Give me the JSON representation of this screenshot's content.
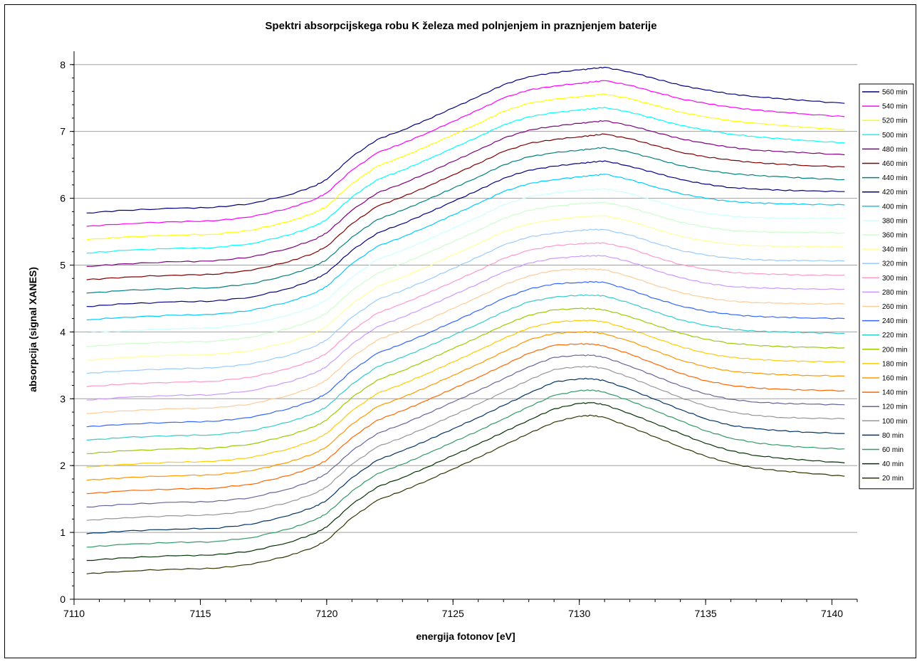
{
  "chart_data": {
    "type": "line",
    "title": "Spektri absorpcijskega robu K železa med polnjenjem in praznjenjem baterije",
    "xlabel": "energija fotonov [eV]",
    "ylabel": "absorpcija (signal XANES)",
    "xlim": [
      7110,
      7141
    ],
    "ylim": [
      0,
      8.2
    ],
    "x_ticks": [
      7110,
      7115,
      7120,
      7125,
      7130,
      7135,
      7140
    ],
    "y_ticks": [
      0,
      1,
      2,
      3,
      4,
      5,
      6,
      7,
      8
    ],
    "grid": "horizontal",
    "legend_position": "right",
    "x": [
      7110.5,
      7112,
      7114,
      7115.5,
      7117,
      7118.5,
      7119.5,
      7120,
      7121,
      7122,
      7123,
      7124,
      7125,
      7126,
      7127,
      7128,
      7129,
      7130,
      7130.5,
      7131,
      7132,
      7133,
      7134,
      7135,
      7136,
      7137,
      7138,
      7139,
      7140.5
    ],
    "series": [
      {
        "name": "20 min",
        "color": "#333300",
        "values": [
          0.38,
          0.42,
          0.45,
          0.46,
          0.52,
          0.65,
          0.78,
          0.88,
          1.22,
          1.48,
          1.62,
          1.78,
          1.95,
          2.12,
          2.3,
          2.48,
          2.65,
          2.74,
          2.75,
          2.72,
          2.58,
          2.43,
          2.28,
          2.14,
          2.03,
          1.96,
          1.92,
          1.89,
          1.84
        ]
      },
      {
        "name": "40 min",
        "color": "#003300",
        "values": [
          0.58,
          0.62,
          0.65,
          0.66,
          0.72,
          0.85,
          0.98,
          1.08,
          1.42,
          1.68,
          1.82,
          1.98,
          2.15,
          2.32,
          2.5,
          2.68,
          2.85,
          2.93,
          2.94,
          2.91,
          2.78,
          2.63,
          2.48,
          2.33,
          2.22,
          2.15,
          2.11,
          2.08,
          2.04
        ]
      },
      {
        "name": "60 min",
        "color": "#339966",
        "values": [
          0.78,
          0.82,
          0.85,
          0.86,
          0.92,
          1.05,
          1.18,
          1.28,
          1.62,
          1.88,
          2.02,
          2.18,
          2.35,
          2.52,
          2.7,
          2.88,
          3.05,
          3.12,
          3.13,
          3.1,
          2.97,
          2.82,
          2.67,
          2.52,
          2.41,
          2.34,
          2.3,
          2.27,
          2.25
        ]
      },
      {
        "name": "80 min",
        "color": "#003366",
        "values": [
          0.98,
          1.02,
          1.05,
          1.06,
          1.12,
          1.25,
          1.38,
          1.48,
          1.82,
          2.08,
          2.22,
          2.38,
          2.55,
          2.72,
          2.9,
          3.08,
          3.25,
          3.3,
          3.3,
          3.27,
          3.14,
          2.99,
          2.84,
          2.7,
          2.6,
          2.55,
          2.52,
          2.5,
          2.48
        ]
      },
      {
        "name": "100 min",
        "color": "#969696",
        "values": [
          1.18,
          1.22,
          1.25,
          1.26,
          1.32,
          1.45,
          1.58,
          1.68,
          2.02,
          2.28,
          2.42,
          2.58,
          2.75,
          2.92,
          3.1,
          3.28,
          3.44,
          3.48,
          3.48,
          3.45,
          3.32,
          3.17,
          3.02,
          2.89,
          2.8,
          2.75,
          2.72,
          2.71,
          2.7
        ]
      },
      {
        "name": "120 min",
        "color": "#666699",
        "values": [
          1.38,
          1.42,
          1.45,
          1.46,
          1.52,
          1.65,
          1.78,
          1.88,
          2.22,
          2.48,
          2.62,
          2.78,
          2.95,
          3.12,
          3.3,
          3.48,
          3.62,
          3.65,
          3.65,
          3.62,
          3.49,
          3.34,
          3.19,
          3.07,
          2.99,
          2.95,
          2.93,
          2.92,
          2.91
        ]
      },
      {
        "name": "140 min",
        "color": "#ff6600",
        "values": [
          1.58,
          1.62,
          1.65,
          1.66,
          1.72,
          1.85,
          1.98,
          2.08,
          2.42,
          2.68,
          2.82,
          2.98,
          3.15,
          3.32,
          3.5,
          3.68,
          3.8,
          3.82,
          3.82,
          3.79,
          3.67,
          3.52,
          3.38,
          3.27,
          3.2,
          3.16,
          3.14,
          3.13,
          3.12
        ]
      },
      {
        "name": "160 min",
        "color": "#ff9900",
        "values": [
          1.78,
          1.82,
          1.85,
          1.86,
          1.92,
          2.05,
          2.18,
          2.28,
          2.62,
          2.88,
          3.02,
          3.18,
          3.35,
          3.52,
          3.7,
          3.88,
          3.98,
          4.0,
          4.0,
          3.97,
          3.86,
          3.72,
          3.58,
          3.48,
          3.41,
          3.38,
          3.36,
          3.35,
          3.34
        ]
      },
      {
        "name": "180 min",
        "color": "#ffcc00",
        "values": [
          1.98,
          2.02,
          2.05,
          2.06,
          2.12,
          2.25,
          2.38,
          2.48,
          2.82,
          3.08,
          3.22,
          3.38,
          3.55,
          3.72,
          3.9,
          4.06,
          4.15,
          4.17,
          4.17,
          4.15,
          4.04,
          3.91,
          3.78,
          3.68,
          3.62,
          3.59,
          3.57,
          3.56,
          3.55
        ]
      },
      {
        "name": "200 min",
        "color": "#99cc00",
        "values": [
          2.18,
          2.22,
          2.25,
          2.26,
          2.32,
          2.45,
          2.58,
          2.68,
          3.02,
          3.28,
          3.42,
          3.58,
          3.75,
          3.92,
          4.1,
          4.25,
          4.33,
          4.35,
          4.35,
          4.33,
          4.23,
          4.1,
          3.98,
          3.89,
          3.83,
          3.8,
          3.78,
          3.77,
          3.76
        ]
      },
      {
        "name": "220 min",
        "color": "#33cccc",
        "values": [
          2.38,
          2.42,
          2.45,
          2.46,
          2.52,
          2.65,
          2.78,
          2.88,
          3.22,
          3.48,
          3.62,
          3.78,
          3.95,
          4.12,
          4.3,
          4.45,
          4.52,
          4.55,
          4.55,
          4.54,
          4.43,
          4.3,
          4.18,
          4.1,
          4.04,
          4.01,
          4.0,
          3.99,
          3.98
        ]
      },
      {
        "name": "240 min",
        "color": "#3366ff",
        "values": [
          2.58,
          2.62,
          2.65,
          2.66,
          2.72,
          2.85,
          2.98,
          3.08,
          3.42,
          3.68,
          3.82,
          3.98,
          4.15,
          4.32,
          4.5,
          4.64,
          4.72,
          4.74,
          4.75,
          4.74,
          4.63,
          4.5,
          4.39,
          4.31,
          4.26,
          4.23,
          4.22,
          4.21,
          4.2
        ]
      },
      {
        "name": "260 min",
        "color": "#ffcc99",
        "values": [
          2.78,
          2.82,
          2.85,
          2.86,
          2.92,
          3.05,
          3.18,
          3.28,
          3.62,
          3.88,
          4.02,
          4.18,
          4.35,
          4.52,
          4.7,
          4.84,
          4.92,
          4.94,
          4.94,
          4.93,
          4.83,
          4.7,
          4.59,
          4.51,
          4.46,
          4.44,
          4.43,
          4.42,
          4.42
        ]
      },
      {
        "name": "280 min",
        "color": "#cc99ff",
        "values": [
          2.98,
          3.02,
          3.05,
          3.06,
          3.12,
          3.25,
          3.38,
          3.48,
          3.82,
          4.08,
          4.22,
          4.38,
          4.55,
          4.72,
          4.9,
          5.03,
          5.1,
          5.13,
          5.14,
          5.14,
          5.05,
          4.92,
          4.81,
          4.73,
          4.68,
          4.66,
          4.65,
          4.64,
          4.64
        ]
      },
      {
        "name": "300 min",
        "color": "#ff99cc",
        "values": [
          3.18,
          3.22,
          3.25,
          3.26,
          3.32,
          3.45,
          3.58,
          3.68,
          4.02,
          4.28,
          4.42,
          4.58,
          4.75,
          4.92,
          5.1,
          5.22,
          5.29,
          5.32,
          5.33,
          5.33,
          5.25,
          5.12,
          5.01,
          4.94,
          4.89,
          4.87,
          4.86,
          4.85,
          4.85
        ]
      },
      {
        "name": "320 min",
        "color": "#99ccff",
        "values": [
          3.38,
          3.42,
          3.45,
          3.46,
          3.52,
          3.65,
          3.78,
          3.88,
          4.22,
          4.48,
          4.62,
          4.78,
          4.95,
          5.12,
          5.3,
          5.42,
          5.48,
          5.52,
          5.53,
          5.53,
          5.45,
          5.33,
          5.22,
          5.15,
          5.1,
          5.08,
          5.07,
          5.07,
          5.06
        ]
      },
      {
        "name": "340 min",
        "color": "#ffff99",
        "values": [
          3.58,
          3.62,
          3.65,
          3.66,
          3.72,
          3.85,
          3.98,
          4.08,
          4.42,
          4.68,
          4.82,
          4.98,
          5.15,
          5.32,
          5.5,
          5.62,
          5.68,
          5.72,
          5.73,
          5.74,
          5.66,
          5.54,
          5.43,
          5.36,
          5.31,
          5.29,
          5.28,
          5.28,
          5.27
        ]
      },
      {
        "name": "360 min",
        "color": "#ccffcc",
        "values": [
          3.78,
          3.82,
          3.85,
          3.86,
          3.92,
          4.05,
          4.18,
          4.28,
          4.62,
          4.88,
          5.02,
          5.18,
          5.35,
          5.52,
          5.7,
          5.82,
          5.88,
          5.92,
          5.93,
          5.94,
          5.86,
          5.75,
          5.64,
          5.57,
          5.52,
          5.5,
          5.49,
          5.49,
          5.48
        ]
      },
      {
        "name": "380 min",
        "color": "#ccffff",
        "values": [
          3.98,
          4.02,
          4.05,
          4.06,
          4.12,
          4.25,
          4.38,
          4.48,
          4.82,
          5.08,
          5.22,
          5.38,
          5.55,
          5.72,
          5.9,
          6.02,
          6.08,
          6.12,
          6.13,
          6.14,
          6.07,
          5.96,
          5.85,
          5.78,
          5.73,
          5.71,
          5.7,
          5.7,
          5.7
        ]
      },
      {
        "name": "400 min",
        "color": "#00ccff",
        "values": [
          4.18,
          4.22,
          4.25,
          4.26,
          4.32,
          4.45,
          4.58,
          4.68,
          5.02,
          5.28,
          5.42,
          5.58,
          5.75,
          5.92,
          6.1,
          6.22,
          6.28,
          6.32,
          6.34,
          6.36,
          6.28,
          6.17,
          6.07,
          6.0,
          5.95,
          5.93,
          5.92,
          5.91,
          5.9
        ]
      },
      {
        "name": "420 min",
        "color": "#000080",
        "values": [
          4.38,
          4.42,
          4.45,
          4.46,
          4.52,
          4.65,
          4.78,
          4.88,
          5.22,
          5.48,
          5.62,
          5.78,
          5.95,
          6.12,
          6.3,
          6.42,
          6.48,
          6.52,
          6.54,
          6.56,
          6.48,
          6.38,
          6.28,
          6.21,
          6.16,
          6.14,
          6.12,
          6.11,
          6.1
        ]
      },
      {
        "name": "440 min",
        "color": "#008080",
        "values": [
          4.58,
          4.62,
          4.65,
          4.66,
          4.72,
          4.85,
          4.98,
          5.08,
          5.42,
          5.68,
          5.82,
          5.98,
          6.15,
          6.32,
          6.5,
          6.62,
          6.68,
          6.72,
          6.74,
          6.76,
          6.69,
          6.59,
          6.49,
          6.42,
          6.37,
          6.34,
          6.32,
          6.3,
          6.28
        ]
      },
      {
        "name": "460 min",
        "color": "#800000",
        "values": [
          4.78,
          4.82,
          4.85,
          4.86,
          4.92,
          5.05,
          5.18,
          5.28,
          5.62,
          5.88,
          6.02,
          6.18,
          6.35,
          6.52,
          6.7,
          6.82,
          6.88,
          6.92,
          6.94,
          6.96,
          6.89,
          6.79,
          6.69,
          6.62,
          6.57,
          6.53,
          6.51,
          6.49,
          6.47
        ]
      },
      {
        "name": "480 min",
        "color": "#800080",
        "values": [
          4.98,
          5.02,
          5.05,
          5.06,
          5.12,
          5.25,
          5.38,
          5.48,
          5.82,
          6.08,
          6.22,
          6.38,
          6.55,
          6.72,
          6.9,
          7.02,
          7.08,
          7.12,
          7.14,
          7.16,
          7.09,
          6.99,
          6.89,
          6.82,
          6.76,
          6.72,
          6.7,
          6.68,
          6.65
        ]
      },
      {
        "name": "500 min",
        "color": "#00ffff",
        "values": [
          5.18,
          5.22,
          5.25,
          5.26,
          5.32,
          5.45,
          5.58,
          5.68,
          6.02,
          6.28,
          6.42,
          6.58,
          6.75,
          6.92,
          7.1,
          7.22,
          7.28,
          7.32,
          7.34,
          7.36,
          7.29,
          7.19,
          7.09,
          7.02,
          6.96,
          6.92,
          6.89,
          6.86,
          6.83
        ]
      },
      {
        "name": "520 min",
        "color": "#ffff00",
        "values": [
          5.38,
          5.42,
          5.45,
          5.46,
          5.52,
          5.65,
          5.78,
          5.88,
          6.22,
          6.48,
          6.62,
          6.78,
          6.95,
          7.12,
          7.3,
          7.42,
          7.48,
          7.52,
          7.54,
          7.56,
          7.49,
          7.39,
          7.29,
          7.22,
          7.16,
          7.12,
          7.09,
          7.06,
          7.03
        ]
      },
      {
        "name": "540 min",
        "color": "#ff00ff",
        "values": [
          5.58,
          5.62,
          5.65,
          5.66,
          5.72,
          5.85,
          5.98,
          6.08,
          6.42,
          6.68,
          6.82,
          6.98,
          7.15,
          7.32,
          7.5,
          7.62,
          7.68,
          7.72,
          7.74,
          7.76,
          7.69,
          7.59,
          7.49,
          7.42,
          7.36,
          7.32,
          7.29,
          7.26,
          7.22
        ]
      },
      {
        "name": "560 min",
        "color": "#000080",
        "values": [
          5.78,
          5.82,
          5.85,
          5.86,
          5.92,
          6.05,
          6.18,
          6.28,
          6.62,
          6.88,
          7.02,
          7.18,
          7.35,
          7.52,
          7.7,
          7.82,
          7.88,
          7.92,
          7.94,
          7.96,
          7.89,
          7.79,
          7.69,
          7.62,
          7.56,
          7.52,
          7.49,
          7.46,
          7.42
        ]
      }
    ]
  }
}
